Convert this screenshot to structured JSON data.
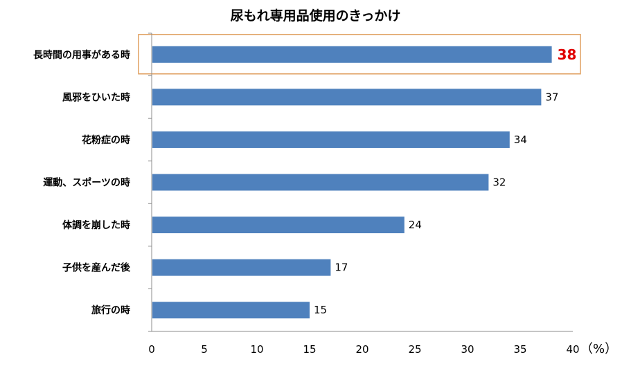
{
  "chart_data": {
    "type": "bar",
    "orientation": "horizontal",
    "title": "尿もれ専用品使用のきっかけ",
    "unit": "（%）",
    "categories": [
      "長時間の用事がある時",
      "風邪をひいた時",
      "花粉症の時",
      "運動、スポーツの時",
      "体調を崩した時",
      "子供を産んだ後",
      "旅行の時"
    ],
    "values": [
      38,
      37,
      34,
      32,
      24,
      17,
      15
    ],
    "highlight_index": 0,
    "xlim": [
      0,
      40
    ],
    "xticks": [
      "0",
      "5",
      "10",
      "15",
      "20",
      "25",
      "30",
      "35",
      "40"
    ],
    "grid": false,
    "colors": {
      "bar": "#4f81bd",
      "highlight_label": "#e00000",
      "highlight_box": "#e0a060"
    }
  }
}
